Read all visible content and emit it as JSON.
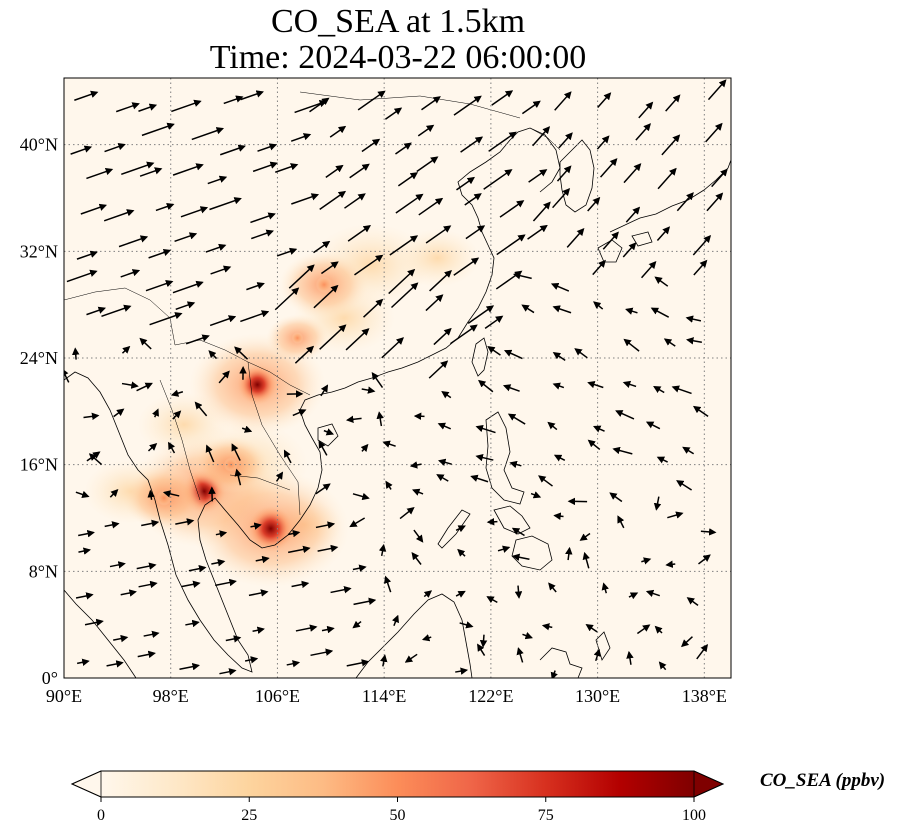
{
  "title": {
    "line1": "CO_SEA at 1.5km",
    "line2": "Time: 2024-03-22 06:00:00"
  },
  "map": {
    "lon_range": [
      90,
      140
    ],
    "lat_range": [
      0,
      45
    ],
    "lon_ticks": [
      90,
      98,
      106,
      114,
      122,
      130,
      138
    ],
    "lon_tick_labels": [
      "90°E",
      "98°E",
      "106°E",
      "114°E",
      "122°E",
      "130°E",
      "138°E"
    ],
    "lat_ticks": [
      0,
      8,
      16,
      24,
      32,
      40
    ],
    "lat_tick_labels": [
      "0°",
      "8°N",
      "16°N",
      "24°N",
      "32°N",
      "40°N"
    ],
    "gridlines": "dotted",
    "coastlines": true,
    "wind_vectors": true
  },
  "colorbar": {
    "label": "CO_SEA (ppbv)",
    "min": 0,
    "max": 100,
    "ticks": [
      0,
      25,
      50,
      75,
      100
    ],
    "tick_labels": [
      "0",
      "25",
      "50",
      "75",
      "100"
    ],
    "extend": "both",
    "colormap": "OrRd",
    "colors": [
      "#fff7ec",
      "#fee8c8",
      "#fdd49e",
      "#fdbb84",
      "#fc8d59",
      "#ef6548",
      "#d7301f",
      "#b30000",
      "#7f0000"
    ]
  },
  "chart_data": {
    "type": "heatmap",
    "field": "CO_SEA",
    "units": "ppbv",
    "hotspots": [
      {
        "lon": 100.5,
        "lat": 14.0,
        "value": 90
      },
      {
        "lon": 105.5,
        "lat": 11.2,
        "value": 95
      },
      {
        "lon": 104.5,
        "lat": 22.0,
        "value": 80
      },
      {
        "lon": 97.5,
        "lat": 13.5,
        "value": 40
      },
      {
        "lon": 102.5,
        "lat": 16.0,
        "value": 35
      },
      {
        "lon": 109.5,
        "lat": 29.5,
        "value": 45
      },
      {
        "lon": 107.5,
        "lat": 25.5,
        "value": 25
      }
    ],
    "plumes": [
      {
        "lon": 103.5,
        "lat": 16.0,
        "value": 20
      },
      {
        "lon": 99.0,
        "lat": 19.0,
        "value": 12
      },
      {
        "lon": 113.0,
        "lat": 31.0,
        "value": 18
      },
      {
        "lon": 118.0,
        "lat": 31.5,
        "value": 10
      },
      {
        "lon": 95.0,
        "lat": 14.0,
        "value": 12
      },
      {
        "lon": 111.0,
        "lat": 27.0,
        "value": 14
      },
      {
        "lon": 108.0,
        "lat": 11.5,
        "value": 8
      }
    ]
  }
}
